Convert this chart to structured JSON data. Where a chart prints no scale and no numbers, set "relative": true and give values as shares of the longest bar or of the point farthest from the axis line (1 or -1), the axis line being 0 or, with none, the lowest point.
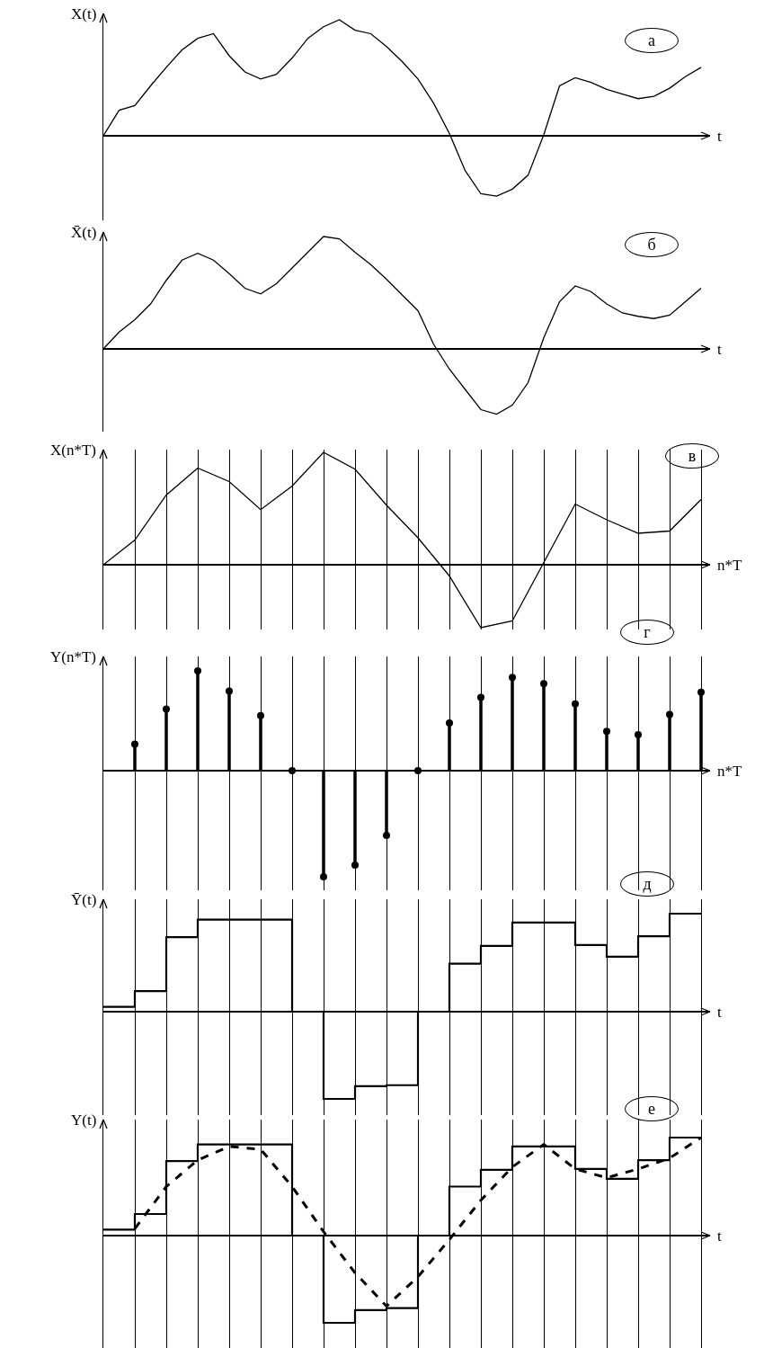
{
  "chart_data": [
    {
      "type": "line",
      "title": "а",
      "xlabel": "t",
      "ylabel": "X(t)",
      "relative": true,
      "tick_labels": false,
      "categories": [
        null,
        null,
        null,
        null,
        null,
        null,
        null,
        null,
        null,
        null,
        null,
        null,
        null,
        null,
        null,
        null,
        null,
        null,
        null,
        null,
        null,
        null,
        null,
        null,
        null,
        null,
        null,
        null,
        null,
        null,
        null,
        null,
        null,
        null,
        null,
        null,
        null,
        null,
        null
      ],
      "series": [
        {
          "color": "#000000",
          "values": [
            0,
            0.22,
            0.26,
            0.43,
            0.59,
            0.74,
            0.84,
            0.88,
            0.69,
            0.55,
            0.49,
            0.53,
            0.67,
            0.84,
            0.94,
            1,
            0.91,
            0.88,
            0.77,
            0.64,
            0.49,
            0.28,
            0.02,
            -0.3,
            -0.5,
            -0.52,
            -0.46,
            -0.34,
            0.01,
            0.43,
            0.5,
            0.46,
            0.4,
            0.36,
            0.32,
            0.34,
            0.41,
            0.51,
            0.59
          ]
        }
      ]
    },
    {
      "type": "line",
      "title": "б",
      "xlabel": "t",
      "ylabel": "X̄(t)",
      "relative": true,
      "tick_labels": false,
      "categories": [
        null,
        null,
        null,
        null,
        null,
        null,
        null,
        null,
        null,
        null,
        null,
        null,
        null,
        null,
        null,
        null,
        null,
        null,
        null,
        null,
        null,
        null,
        null,
        null,
        null,
        null,
        null,
        null,
        null,
        null,
        null,
        null,
        null,
        null,
        null,
        null,
        null,
        null,
        null
      ],
      "series": [
        {
          "color": "#000000",
          "values": [
            0,
            0.15,
            0.26,
            0.4,
            0.61,
            0.79,
            0.85,
            0.79,
            0.67,
            0.54,
            0.49,
            0.58,
            0.72,
            0.86,
            1,
            0.98,
            0.86,
            0.75,
            0.62,
            0.48,
            0.34,
            0.04,
            -0.18,
            -0.36,
            -0.54,
            -0.58,
            -0.5,
            -0.3,
            0.1,
            0.42,
            0.56,
            0.51,
            0.4,
            0.32,
            0.29,
            0.27,
            0.3,
            0.42,
            0.54
          ]
        }
      ]
    },
    {
      "type": "line",
      "title": "в",
      "xlabel": "n*T",
      "ylabel": "X(n*T)",
      "relative": true,
      "tick_labels": false,
      "grid": "x",
      "categories": [
        null,
        null,
        null,
        null,
        null,
        null,
        null,
        null,
        null,
        null,
        null,
        null,
        null,
        null,
        null,
        null,
        null,
        null,
        null,
        null
      ],
      "series": [
        {
          "color": "#000000",
          "values": [
            0,
            0.22,
            0.62,
            0.86,
            0.74,
            0.49,
            0.7,
            1,
            0.85,
            0.53,
            0.24,
            -0.1,
            -0.56,
            -0.5,
            0.02,
            0.54,
            0.4,
            0.28,
            0.3,
            0.58
          ]
        }
      ]
    },
    {
      "type": "lollipop",
      "title": "г",
      "xlabel": "n*T",
      "ylabel": "Y(n*T)",
      "relative": true,
      "tick_labels": false,
      "grid": "x",
      "marker": "circle",
      "categories": [
        null,
        null,
        null,
        null,
        null,
        null,
        null,
        null,
        null,
        null,
        null,
        null,
        null,
        null,
        null,
        null,
        null,
        null,
        null,
        null
      ],
      "series": [
        {
          "color": "#000000",
          "values": [
            null,
            0.25,
            0.58,
            0.94,
            0.75,
            0.52,
            0,
            -1,
            -0.89,
            -0.61,
            0,
            0.45,
            0.69,
            0.88,
            0.82,
            0.63,
            0.37,
            0.34,
            0.53,
            0.74
          ]
        }
      ]
    },
    {
      "type": "step",
      "title": "д",
      "xlabel": "t",
      "ylabel": "Ȳ(t)",
      "relative": true,
      "tick_labels": false,
      "grid": "x",
      "categories": [
        null,
        null,
        null,
        null,
        null,
        null,
        null,
        null,
        null,
        null,
        null,
        null,
        null,
        null,
        null,
        null,
        null,
        null,
        null,
        null
      ],
      "series": [
        {
          "color": "#000000",
          "values": [
            0.05,
            0.21,
            0.76,
            0.94,
            0.94,
            0.94,
            0,
            -0.89,
            -0.76,
            -0.75,
            0,
            0.49,
            0.67,
            0.91,
            0.91,
            0.68,
            0.56,
            0.77,
            1,
            1
          ]
        }
      ]
    },
    {
      "type": "step",
      "title": "е",
      "xlabel": "t",
      "ylabel": "Y(t)",
      "relative": true,
      "tick_labels": false,
      "grid": "x",
      "categories": [
        null,
        null,
        null,
        null,
        null,
        null,
        null,
        null,
        null,
        null,
        null,
        null,
        null,
        null,
        null,
        null,
        null,
        null,
        null,
        null
      ],
      "series": [
        {
          "color": "#000000",
          "line_style": "solid",
          "values": [
            0.06,
            0.22,
            0.76,
            0.93,
            0.93,
            0.93,
            0,
            -0.89,
            -0.76,
            -0.74,
            0,
            0.5,
            0.67,
            0.91,
            0.91,
            0.68,
            0.58,
            0.77,
            1,
            1
          ]
        },
        {
          "type": "line",
          "color": "#000000",
          "line_style": "dashed",
          "values": [
            null,
            0.07,
            0.5,
            0.77,
            0.91,
            0.88,
            0.5,
            0.04,
            -0.38,
            -0.72,
            -0.42,
            -0.04,
            0.36,
            0.7,
            0.93,
            0.68,
            0.59,
            0.68,
            0.79,
            1
          ]
        }
      ]
    }
  ]
}
